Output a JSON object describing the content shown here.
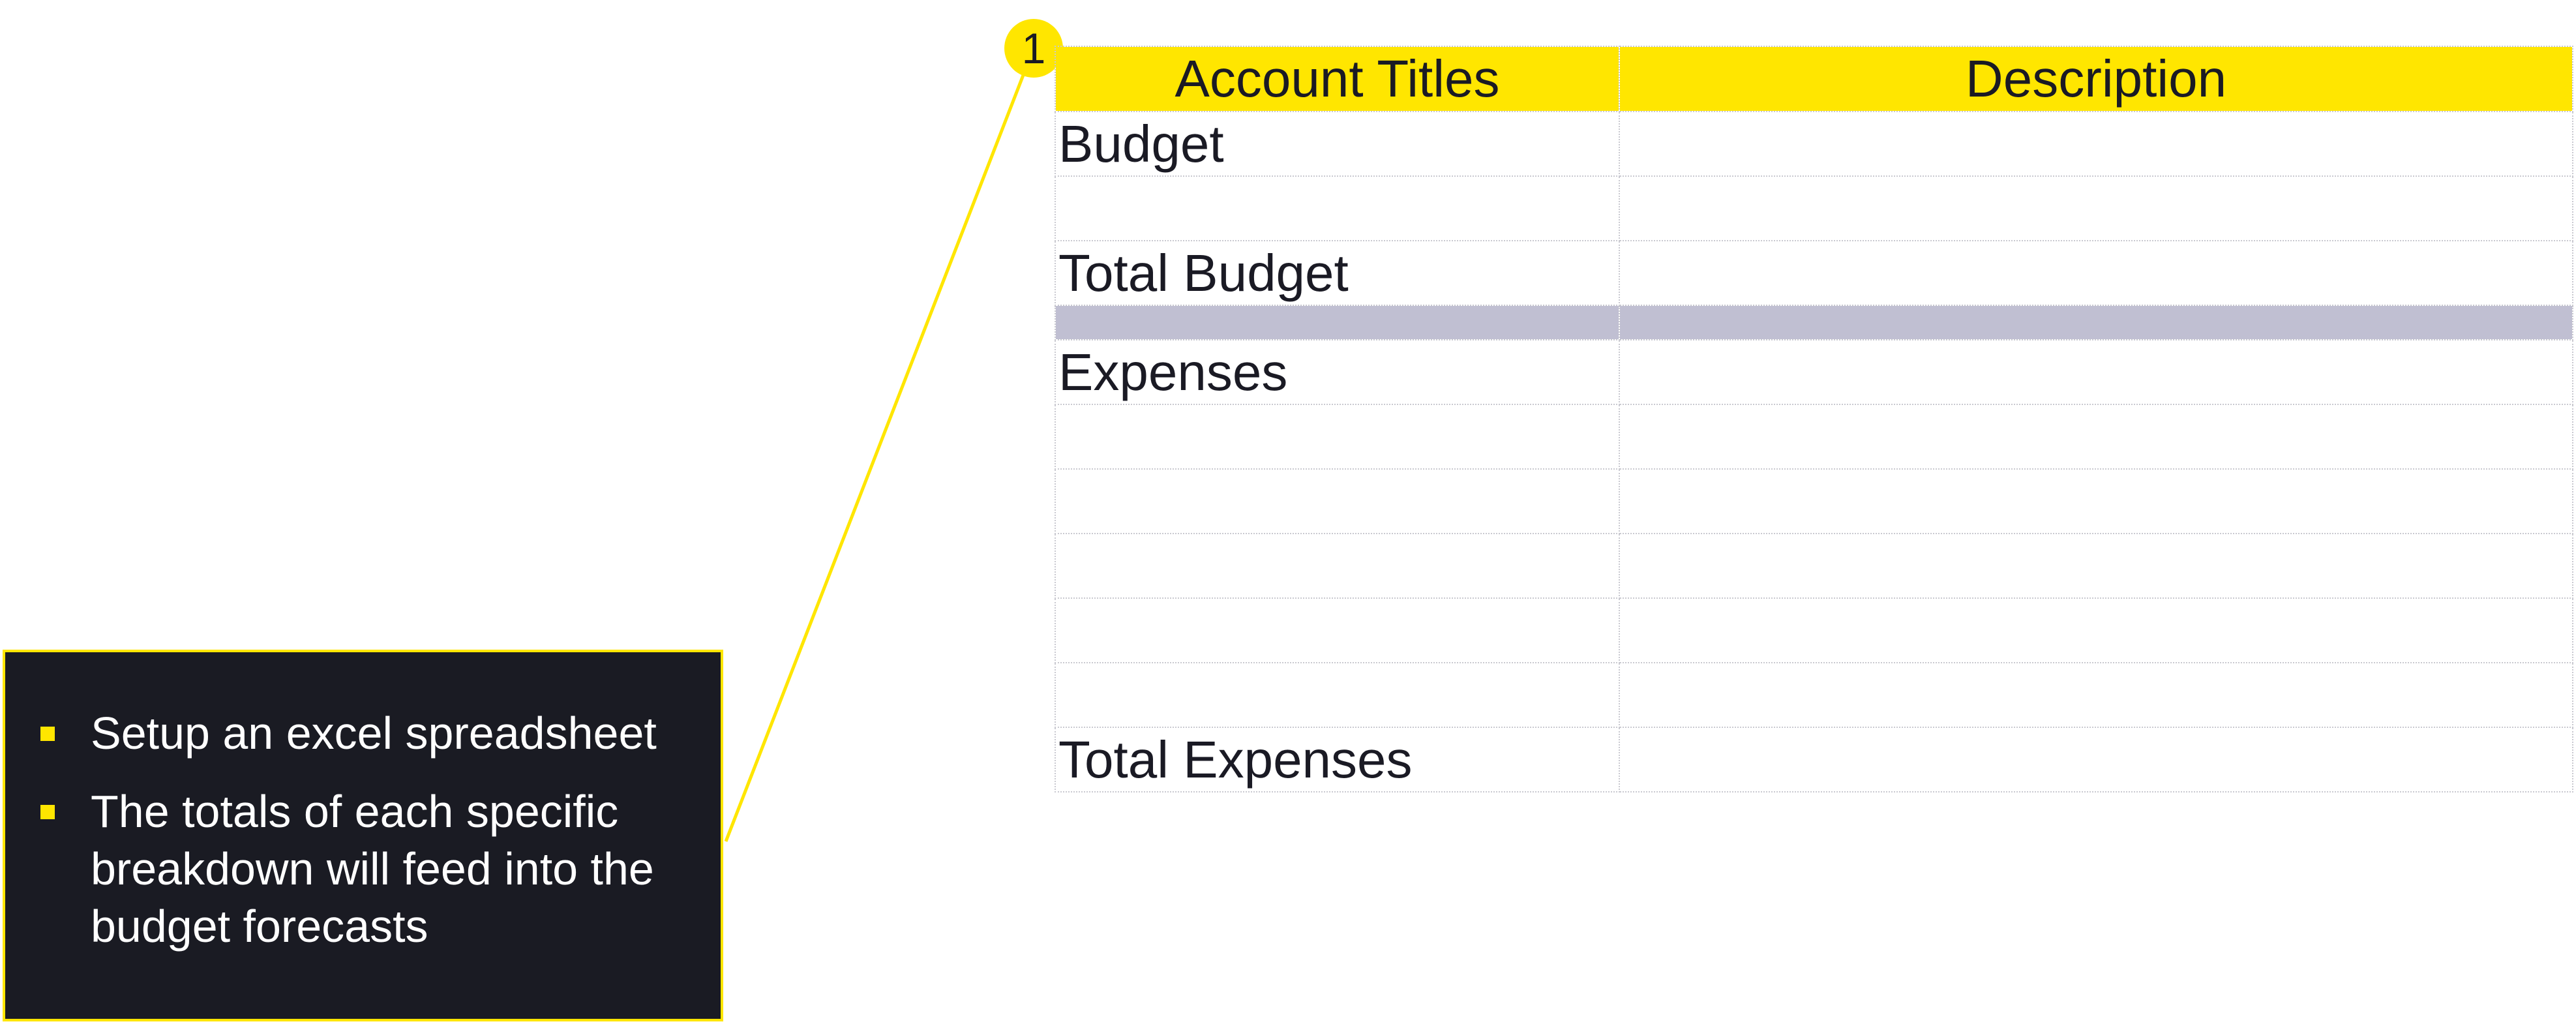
{
  "callout": {
    "number": "1"
  },
  "table": {
    "headers": [
      "Account Titles",
      "Description"
    ],
    "rows": [
      {
        "label": "Budget",
        "description": ""
      },
      {
        "label": "",
        "description": ""
      },
      {
        "label": "Total Budget",
        "description": ""
      },
      {
        "label": "",
        "description": "",
        "separator": true
      },
      {
        "label": "Expenses",
        "description": ""
      },
      {
        "label": "",
        "description": ""
      },
      {
        "label": "",
        "description": ""
      },
      {
        "label": "",
        "description": ""
      },
      {
        "label": "",
        "description": ""
      },
      {
        "label": "",
        "description": ""
      },
      {
        "label": "Total Expenses",
        "description": ""
      }
    ]
  },
  "notes": {
    "items": [
      "Setup an excel spreadsheet",
      "The totals of each specific breakdown will feed into the budget forecasts"
    ]
  },
  "colors": {
    "accent_yellow": "#ffe600",
    "dark_panel": "#1a1b23",
    "separator_band": "#c0bfd2"
  }
}
